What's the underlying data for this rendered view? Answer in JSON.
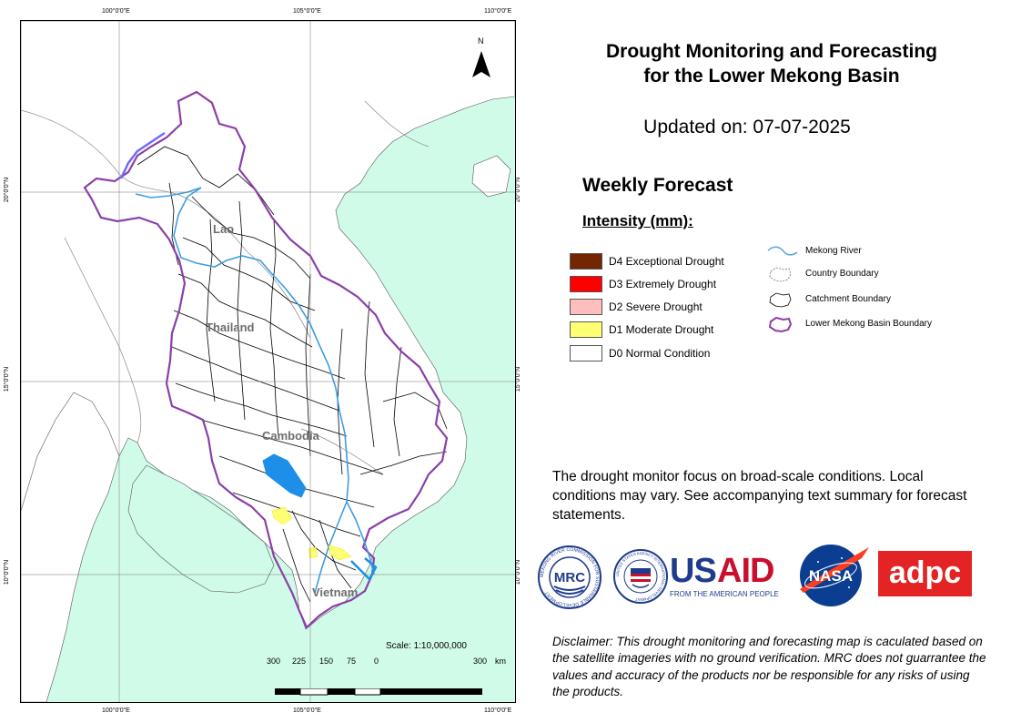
{
  "title_line1": "Drought Monitoring and Forecasting",
  "title_line2": "for the Lower Mekong Basin",
  "updated": "Updated on: 07-07-2025",
  "weekly_forecast": "Weekly Forecast",
  "intensity_label": "Intensity (mm):",
  "intensity_legend": [
    {
      "label": "D4 Exceptional Drought",
      "color": "#732600"
    },
    {
      "label": "D3 Extremely Drought",
      "color": "#ff0000"
    },
    {
      "label": "D2 Severe Drought",
      "color": "#ffbebe"
    },
    {
      "label": "D1 Moderate Drought",
      "color": "#ffff73"
    },
    {
      "label": "D0 Normal Condition",
      "color": "#ffffff"
    }
  ],
  "boundary_legend": [
    {
      "label": "Mekong River",
      "icon": "river-line-icon"
    },
    {
      "label": "Country Boundary",
      "icon": "country-boundary-icon"
    },
    {
      "label": "Catchment Boundary",
      "icon": "catchment-boundary-icon"
    },
    {
      "label": "Lower Mekong Basin Boundary",
      "icon": "basin-boundary-icon"
    }
  ],
  "note": "The drought monitor focus on broad-scale conditions. Local conditions may vary. See accompanying text summary for forecast statements.",
  "disclaimer": "Disclaimer: This drought monitoring and forecasting map is caculated based on the satellite imageries with no ground verification. MRC does not guarrantee the values and accuracy of the products nor be responsible for any risks of using the products.",
  "map": {
    "north_label": "N",
    "country_labels": {
      "lao": "Lao",
      "thailand": "Thailand",
      "cambodia": "Cambodia",
      "vietnam": "Vietnam"
    },
    "scale_text": "Scale: 1:10,000,000",
    "scale_ticks": [
      "300",
      "225",
      "150",
      "75",
      "0",
      "300"
    ],
    "scale_unit": "km",
    "longitude_labels": [
      "100°0'0\"E",
      "105°0'0\"E",
      "110°0'0\"E"
    ],
    "latitude_labels": [
      "20°0'0\"N",
      "15°0'0\"N",
      "10°0'0\"N"
    ],
    "colors": {
      "sea": "#d1fbe9",
      "basin_boundary": "#8b3fa8",
      "river": "#5aa9e0",
      "lake": "#1e8fe8"
    }
  },
  "logos": {
    "mrc_ring": "MEKONG RIVER COMMISSION FOR SUSTAINABLE DEVELOPMENT",
    "mrc_text": "MRC",
    "usaid_ring": "UNITED STATES AGENCY INTERNATIONAL DEVELOPMENT",
    "usaid_text": "USAID",
    "usaid_sub": "FROM THE AMERICAN PEOPLE",
    "nasa_text": "NASA",
    "adpc_text": "adpc"
  }
}
